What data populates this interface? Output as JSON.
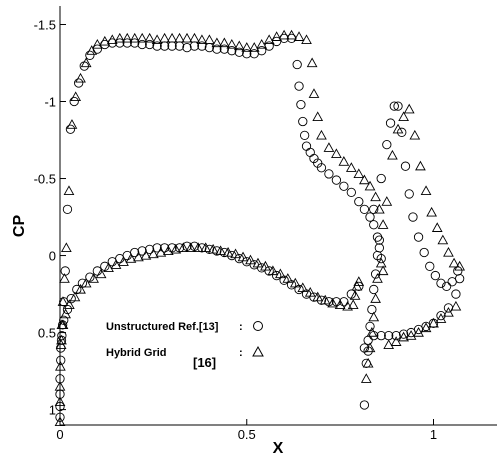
{
  "chart_data": {
    "type": "scatter",
    "xlabel": "X",
    "ylabel": "CP",
    "xlim": [
      0,
      1.17
    ],
    "ylim": [
      -1.62,
      1.1
    ],
    "y_inverted": true,
    "x_ticks": [
      0,
      0.5,
      1
    ],
    "x_tick_labels": [
      "0",
      "0.5",
      "1"
    ],
    "y_ticks": [
      -1.5,
      -1,
      -0.5,
      0,
      0.5,
      1
    ],
    "y_tick_labels": [
      "-1.5",
      "-1",
      "-0.5",
      "0",
      "0.5",
      "1"
    ],
    "grid": false,
    "legend_position": "bottom-left",
    "legend": [
      {
        "label": "Unstructured Ref.[13]",
        "separator": ":",
        "marker": "circle"
      },
      {
        "label": "Hybrid Grid",
        "separator": ":",
        "marker": "triangle"
      }
    ],
    "annotations": [
      {
        "text": "[16]"
      }
    ],
    "series": [
      {
        "name": "Unstructured Ref.[13]",
        "marker": "circle",
        "x": [
          0.0,
          0.0,
          0.0,
          0.0,
          0.002,
          0.004,
          0.007,
          0.01,
          0.014,
          0.02,
          0.028,
          0.038,
          0.05,
          0.065,
          0.08,
          0.1,
          0.12,
          0.14,
          0.16,
          0.18,
          0.2,
          0.22,
          0.24,
          0.26,
          0.28,
          0.3,
          0.32,
          0.34,
          0.36,
          0.38,
          0.4,
          0.42,
          0.44,
          0.46,
          0.48,
          0.5,
          0.52,
          0.54,
          0.56,
          0.58,
          0.6,
          0.62,
          0.635,
          0.64,
          0.645,
          0.65,
          0.655,
          0.66,
          0.67,
          0.68,
          0.69,
          0.7,
          0.72,
          0.74,
          0.76,
          0.78,
          0.8,
          0.815,
          0.83,
          0.84,
          0.85,
          0.855,
          0.86,
          0.002,
          0.005,
          0.01,
          0.02,
          0.03,
          0.045,
          0.06,
          0.08,
          0.1,
          0.12,
          0.14,
          0.16,
          0.18,
          0.2,
          0.22,
          0.24,
          0.26,
          0.28,
          0.3,
          0.32,
          0.34,
          0.36,
          0.38,
          0.4,
          0.42,
          0.44,
          0.46,
          0.48,
          0.5,
          0.52,
          0.54,
          0.56,
          0.58,
          0.6,
          0.62,
          0.64,
          0.66,
          0.68,
          0.7,
          0.72,
          0.74,
          0.76,
          0.78,
          0.8,
          0.815,
          0.82,
          0.825,
          0.83,
          0.835,
          0.84,
          0.845,
          0.85,
          0.855,
          0.815,
          0.825,
          0.84,
          0.86,
          0.88,
          0.9,
          0.92,
          0.94,
          0.96,
          0.98,
          1.0,
          1.02,
          1.04,
          1.06,
          1.07,
          0.84,
          0.86,
          0.875,
          0.885,
          0.895,
          0.905,
          0.915,
          0.925,
          0.935,
          0.945,
          0.96,
          0.975,
          0.99,
          1.005,
          1.02,
          1.035,
          1.05,
          1.065
        ],
        "y": [
          1.05,
          0.98,
          0.9,
          0.8,
          0.68,
          0.55,
          0.45,
          0.3,
          0.1,
          -0.3,
          -0.82,
          -1.0,
          -1.12,
          -1.23,
          -1.3,
          -1.34,
          -1.37,
          -1.38,
          -1.38,
          -1.38,
          -1.38,
          -1.37,
          -1.37,
          -1.36,
          -1.36,
          -1.36,
          -1.36,
          -1.35,
          -1.36,
          -1.36,
          -1.35,
          -1.34,
          -1.34,
          -1.33,
          -1.32,
          -1.31,
          -1.31,
          -1.33,
          -1.36,
          -1.39,
          -1.41,
          -1.41,
          -1.24,
          -1.1,
          -0.98,
          -0.87,
          -0.78,
          -0.71,
          -0.67,
          -0.63,
          -0.6,
          -0.57,
          -0.53,
          -0.49,
          -0.45,
          -0.41,
          -0.35,
          -0.3,
          -0.25,
          -0.2,
          -0.12,
          -0.05,
          0.02,
          0.6,
          0.52,
          0.42,
          0.35,
          0.28,
          0.22,
          0.18,
          0.14,
          0.1,
          0.07,
          0.04,
          0.02,
          0.0,
          -0.02,
          -0.03,
          -0.04,
          -0.05,
          -0.05,
          -0.05,
          -0.05,
          -0.06,
          -0.06,
          -0.05,
          -0.04,
          -0.03,
          -0.02,
          0.0,
          0.02,
          0.04,
          0.06,
          0.08,
          0.1,
          0.13,
          0.16,
          0.19,
          0.22,
          0.25,
          0.27,
          0.29,
          0.3,
          0.3,
          0.3,
          0.25,
          0.2,
          0.97,
          0.7,
          0.62,
          0.46,
          0.35,
          0.22,
          0.12,
          0.0,
          -0.1,
          0.6,
          0.55,
          0.52,
          0.52,
          0.52,
          0.52,
          0.51,
          0.5,
          0.48,
          0.46,
          0.44,
          0.39,
          0.34,
          0.25,
          0.15,
          -0.3,
          -0.5,
          -0.72,
          -0.86,
          -0.97,
          -0.97,
          -0.8,
          -0.58,
          -0.4,
          -0.25,
          -0.12,
          -0.02,
          0.07,
          0.13,
          0.18,
          0.2,
          0.17,
          0.1
        ]
      },
      {
        "name": "Hybrid Grid",
        "marker": "triangle",
        "x": [
          0.0,
          0.0,
          0.0,
          0.001,
          0.003,
          0.005,
          0.008,
          0.012,
          0.017,
          0.024,
          0.032,
          0.042,
          0.055,
          0.07,
          0.085,
          0.1,
          0.12,
          0.14,
          0.16,
          0.18,
          0.2,
          0.22,
          0.24,
          0.26,
          0.28,
          0.3,
          0.32,
          0.34,
          0.36,
          0.38,
          0.4,
          0.42,
          0.44,
          0.46,
          0.48,
          0.5,
          0.52,
          0.54,
          0.56,
          0.58,
          0.6,
          0.62,
          0.64,
          0.66,
          0.675,
          0.68,
          0.69,
          0.7,
          0.72,
          0.74,
          0.76,
          0.78,
          0.8,
          0.815,
          0.83,
          0.845,
          0.855,
          0.865,
          0.004,
          0.008,
          0.015,
          0.025,
          0.04,
          0.055,
          0.07,
          0.09,
          0.11,
          0.13,
          0.15,
          0.17,
          0.19,
          0.21,
          0.23,
          0.25,
          0.27,
          0.29,
          0.31,
          0.33,
          0.35,
          0.37,
          0.39,
          0.41,
          0.43,
          0.45,
          0.47,
          0.49,
          0.51,
          0.53,
          0.55,
          0.57,
          0.59,
          0.61,
          0.63,
          0.65,
          0.67,
          0.69,
          0.71,
          0.73,
          0.75,
          0.77,
          0.785,
          0.79,
          0.795,
          0.8,
          0.82,
          0.825,
          0.83,
          0.835,
          0.84,
          0.845,
          0.85,
          0.86,
          0.88,
          0.9,
          0.92,
          0.94,
          0.96,
          0.98,
          1.0,
          1.02,
          1.04,
          1.06,
          0.865,
          0.875,
          0.89,
          0.905,
          0.92,
          0.935,
          0.95,
          0.965,
          0.98,
          0.995,
          1.01,
          1.025,
          1.04,
          1.055,
          1.07
        ],
        "y": [
          1.08,
          0.95,
          0.85,
          0.72,
          0.58,
          0.45,
          0.3,
          0.15,
          -0.05,
          -0.42,
          -0.85,
          -1.03,
          -1.15,
          -1.25,
          -1.33,
          -1.37,
          -1.39,
          -1.4,
          -1.41,
          -1.41,
          -1.41,
          -1.41,
          -1.41,
          -1.4,
          -1.41,
          -1.41,
          -1.41,
          -1.41,
          -1.41,
          -1.4,
          -1.4,
          -1.38,
          -1.38,
          -1.37,
          -1.36,
          -1.35,
          -1.35,
          -1.37,
          -1.4,
          -1.42,
          -1.43,
          -1.43,
          -1.42,
          -1.4,
          -1.25,
          -1.05,
          -0.9,
          -0.78,
          -0.7,
          -0.66,
          -0.61,
          -0.57,
          -0.53,
          -0.49,
          -0.45,
          -0.38,
          -0.3,
          -0.2,
          0.55,
          0.45,
          0.38,
          0.32,
          0.27,
          0.22,
          0.18,
          0.15,
          0.12,
          0.08,
          0.06,
          0.04,
          0.02,
          0.01,
          0.0,
          -0.01,
          -0.02,
          -0.03,
          -0.04,
          -0.05,
          -0.05,
          -0.05,
          -0.05,
          -0.04,
          -0.03,
          -0.02,
          -0.01,
          0.01,
          0.03,
          0.05,
          0.07,
          0.1,
          0.12,
          0.15,
          0.18,
          0.21,
          0.24,
          0.27,
          0.29,
          0.31,
          0.32,
          0.33,
          0.32,
          0.26,
          0.2,
          0.17,
          0.8,
          0.7,
          0.6,
          0.5,
          0.4,
          0.28,
          0.15,
          0.05,
          0.58,
          0.56,
          0.53,
          0.52,
          0.5,
          0.47,
          0.44,
          0.41,
          0.37,
          0.33,
          0.1,
          -0.35,
          -0.65,
          -0.82,
          -0.9,
          -0.95,
          -0.78,
          -0.58,
          -0.42,
          -0.28,
          -0.18,
          -0.1,
          -0.02,
          0.05,
          0.07
        ]
      }
    ]
  }
}
